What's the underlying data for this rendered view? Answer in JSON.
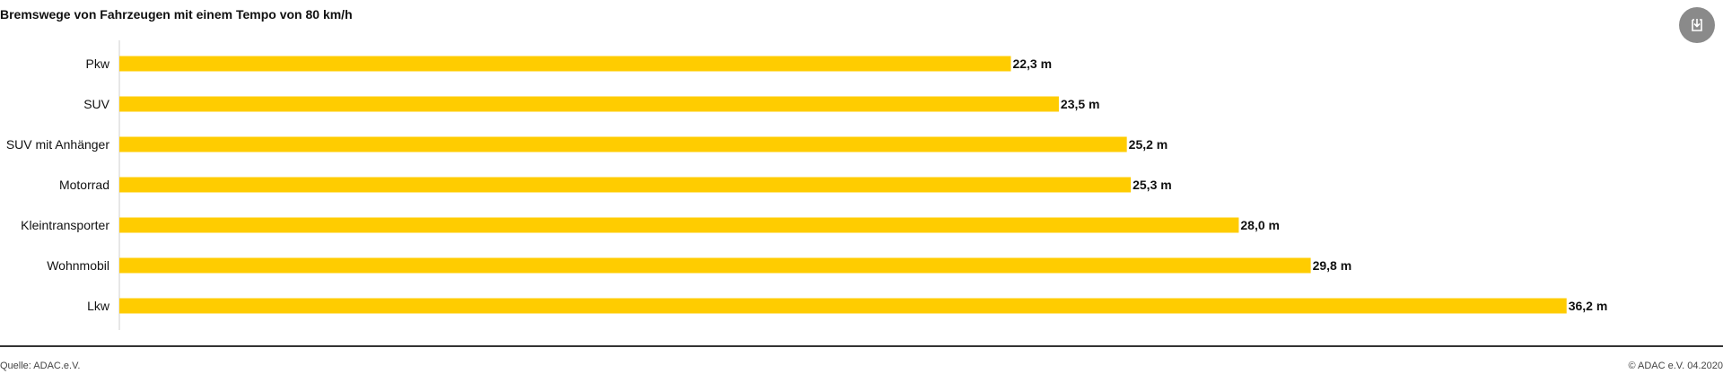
{
  "chart_data": {
    "type": "bar",
    "orientation": "horizontal",
    "title": "Bremswege von Fahrzeugen mit einem Tempo von 80 km/h",
    "categories": [
      "Pkw",
      "SUV",
      "SUV mit Anhänger",
      "Motorrad",
      "Kleintransporter",
      "Wohnmobil",
      "Lkw"
    ],
    "values": [
      22.3,
      23.5,
      25.2,
      25.3,
      28.0,
      29.8,
      36.2
    ],
    "value_labels": [
      "22,3 m",
      "23,5 m",
      "25,2 m",
      "25,3 m",
      "28,0 m",
      "29,8 m",
      "36,2 m"
    ],
    "unit": "m",
    "xlim": [
      0,
      40
    ],
    "bar_color": "#ffcc00",
    "grid": false,
    "legend": "none"
  },
  "footer": {
    "source": "Quelle: ADAC.e.V.",
    "copyright": "© ADAC e.V. 04.2020"
  },
  "toolbar": {
    "download_icon": "download-icon"
  }
}
